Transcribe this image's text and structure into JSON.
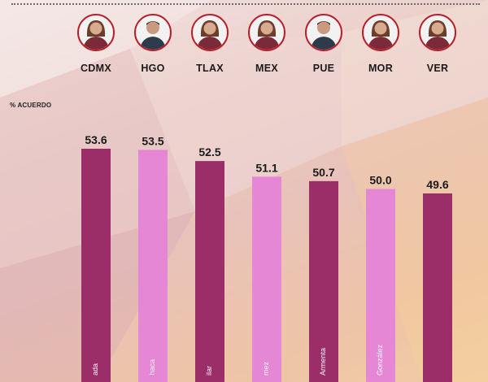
{
  "ylabel": "% ACUERDO",
  "colors": {
    "dark": "#9b2e68",
    "light": "#e587d4"
  },
  "chart_data": {
    "type": "bar",
    "categories": [
      "CDMX",
      "HGO",
      "TLAX",
      "MEX",
      "PUE",
      "MOR",
      "VER"
    ],
    "values": [
      53.6,
      53.5,
      52.5,
      51.1,
      50.7,
      50.0,
      49.6
    ],
    "value_labels": [
      "53.6",
      "53.5",
      "52.5",
      "51.1",
      "50.7",
      "50.0",
      "49.6"
    ],
    "bar_names": [
      "ada",
      "haca",
      "ilar",
      "mez",
      "Armenta",
      "González",
      ""
    ],
    "bar_colors": [
      "dark",
      "light",
      "dark",
      "light",
      "dark",
      "light",
      "dark"
    ],
    "ylabel": "% ACUERDO",
    "avatars": [
      "woman-avatar-icon",
      "man-avatar-icon",
      "woman-avatar-icon",
      "woman-avatar-icon",
      "man-avatar-icon",
      "woman-avatar-icon",
      "woman-avatar-icon"
    ]
  }
}
